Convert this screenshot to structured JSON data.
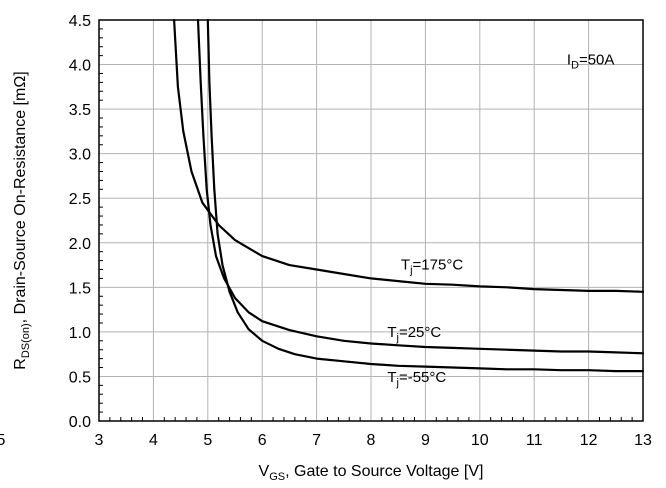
{
  "chart_data": {
    "type": "line",
    "xlim": [
      3,
      13
    ],
    "ylim": [
      0.0,
      4.5
    ],
    "x_ticks": [
      3,
      4,
      5,
      6,
      7,
      8,
      9,
      10,
      11,
      12,
      13
    ],
    "y_ticks": [
      0.0,
      0.5,
      1.0,
      1.5,
      2.0,
      2.5,
      3.0,
      3.5,
      4.0,
      4.5
    ],
    "y_tick_labels": [
      "0.0",
      "0.5",
      "1.0",
      "1.5",
      "2.0",
      "2.5",
      "3.0",
      "3.5",
      "4.0",
      "4.5"
    ],
    "x_tick_labels": [
      "3",
      "4",
      "5",
      "6",
      "7",
      "8",
      "9",
      "10",
      "11",
      "12",
      "13"
    ],
    "cropped_left_tick_label": "5",
    "grid": true,
    "xlabel": {
      "main": "V",
      "sub": "GS",
      "rest": ", Gate to Source Voltage [V]"
    },
    "ylabel": {
      "main": "R",
      "sub": "DS(on)",
      "rest": ", Drain-Source On-Resistance [mΩ]"
    },
    "condition": {
      "main": "I",
      "sub": "D",
      "rest": "=50A"
    },
    "series": [
      {
        "name": {
          "main": "T",
          "sub": "j",
          "rest": "=175°C"
        },
        "points": [
          [
            4.38,
            4.5
          ],
          [
            4.45,
            3.75
          ],
          [
            4.55,
            3.25
          ],
          [
            4.7,
            2.8
          ],
          [
            4.9,
            2.45
          ],
          [
            5.2,
            2.2
          ],
          [
            5.5,
            2.03
          ],
          [
            6.0,
            1.85
          ],
          [
            6.5,
            1.75
          ],
          [
            7.0,
            1.7
          ],
          [
            7.5,
            1.65
          ],
          [
            8.0,
            1.6
          ],
          [
            8.5,
            1.57
          ],
          [
            9.0,
            1.54
          ],
          [
            9.5,
            1.53
          ],
          [
            10.0,
            1.51
          ],
          [
            10.5,
            1.5
          ],
          [
            11.0,
            1.48
          ],
          [
            11.5,
            1.47
          ],
          [
            12.0,
            1.46
          ],
          [
            12.5,
            1.46
          ],
          [
            13.0,
            1.45
          ]
        ],
        "label_at": [
          8.55,
          1.7
        ]
      },
      {
        "name": {
          "main": "T",
          "sub": "j",
          "rest": "=25°C"
        },
        "points": [
          [
            4.82,
            4.5
          ],
          [
            4.87,
            3.8
          ],
          [
            4.92,
            3.2
          ],
          [
            4.98,
            2.6
          ],
          [
            5.05,
            2.2
          ],
          [
            5.15,
            1.85
          ],
          [
            5.3,
            1.6
          ],
          [
            5.5,
            1.38
          ],
          [
            5.75,
            1.22
          ],
          [
            6.0,
            1.12
          ],
          [
            6.5,
            1.02
          ],
          [
            7.0,
            0.95
          ],
          [
            7.5,
            0.9
          ],
          [
            8.0,
            0.87
          ],
          [
            8.5,
            0.85
          ],
          [
            9.0,
            0.83
          ],
          [
            9.5,
            0.82
          ],
          [
            10.0,
            0.81
          ],
          [
            10.5,
            0.8
          ],
          [
            11.0,
            0.79
          ],
          [
            11.5,
            0.78
          ],
          [
            12.0,
            0.78
          ],
          [
            12.5,
            0.77
          ],
          [
            13.0,
            0.76
          ]
        ],
        "label_at": [
          8.3,
          0.94
        ]
      },
      {
        "name": {
          "main": "T",
          "sub": "j",
          "rest": "=-55°C"
        },
        "points": [
          [
            5.0,
            4.5
          ],
          [
            5.03,
            3.8
          ],
          [
            5.07,
            3.2
          ],
          [
            5.12,
            2.6
          ],
          [
            5.18,
            2.1
          ],
          [
            5.27,
            1.75
          ],
          [
            5.4,
            1.45
          ],
          [
            5.55,
            1.22
          ],
          [
            5.75,
            1.03
          ],
          [
            6.0,
            0.9
          ],
          [
            6.3,
            0.81
          ],
          [
            6.6,
            0.75
          ],
          [
            7.0,
            0.7
          ],
          [
            7.5,
            0.67
          ],
          [
            8.0,
            0.64
          ],
          [
            8.5,
            0.62
          ],
          [
            9.0,
            0.61
          ],
          [
            9.5,
            0.6
          ],
          [
            10.0,
            0.59
          ],
          [
            10.5,
            0.58
          ],
          [
            11.0,
            0.58
          ],
          [
            11.5,
            0.57
          ],
          [
            12.0,
            0.57
          ],
          [
            12.5,
            0.56
          ],
          [
            13.0,
            0.56
          ]
        ],
        "label_at": [
          8.3,
          0.44
        ]
      }
    ]
  }
}
